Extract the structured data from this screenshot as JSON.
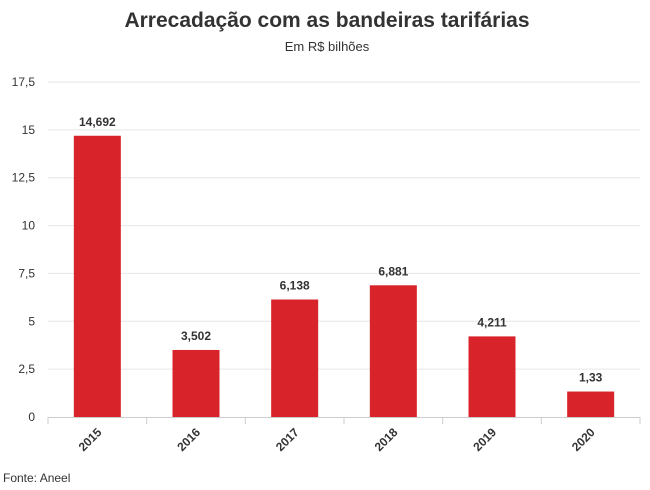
{
  "source": "Fonte: Aneel",
  "chart_data": {
    "type": "bar",
    "title": "Arrecadação com as bandeiras tarifárias",
    "subtitle": "Em R$ bilhões",
    "categories": [
      "2015",
      "2016",
      "2017",
      "2018",
      "2019",
      "2020"
    ],
    "values": [
      14.692,
      3.502,
      6.138,
      6.881,
      4.211,
      1.33
    ],
    "data_labels": [
      "14,692",
      "3,502",
      "6,138",
      "6,881",
      "4,211",
      "1,33"
    ],
    "yticks": [
      0,
      2.5,
      5,
      7.5,
      10,
      12.5,
      15,
      17.5
    ],
    "ytick_labels": [
      "0",
      "2,5",
      "5",
      "7,5",
      "10",
      "12,5",
      "15",
      "17,5"
    ],
    "ylim": [
      0,
      17.5
    ],
    "xlabel": "",
    "ylabel": "",
    "grid": true,
    "bar_color": "#d9232a",
    "grid_color": "#e6e6e6",
    "axis_color": "#cccccc"
  }
}
